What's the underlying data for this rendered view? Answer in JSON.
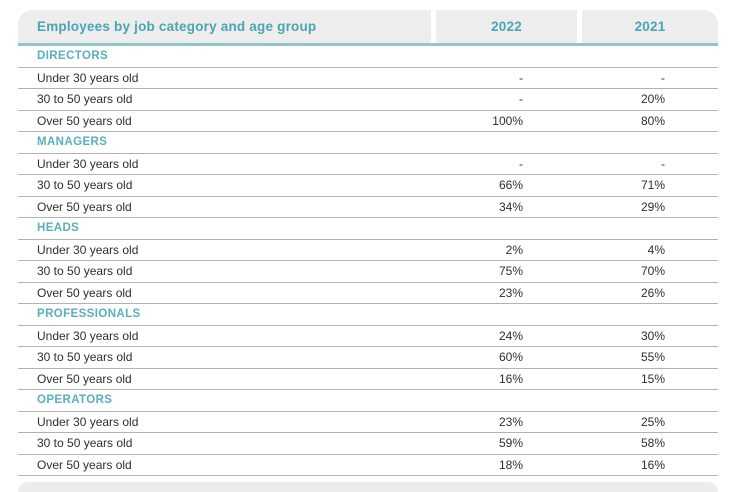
{
  "table": {
    "title": "Employees by job category and age group",
    "columns": [
      "2022",
      "2021"
    ],
    "sections": [
      {
        "name": "DIRECTORS",
        "rows": [
          {
            "label": "Under 30 years old",
            "y2022": "-",
            "y2021": "-"
          },
          {
            "label": "30 to 50 years old",
            "y2022": "-",
            "y2021": "20%"
          },
          {
            "label": "Over 50 years old",
            "y2022": "100%",
            "y2021": "80%"
          }
        ]
      },
      {
        "name": "MANAGERS",
        "rows": [
          {
            "label": "Under 30 years old",
            "y2022": "-",
            "y2021": "-"
          },
          {
            "label": "30 to 50 years old",
            "y2022": "66%",
            "y2021": "71%"
          },
          {
            "label": "Over 50 years old",
            "y2022": "34%",
            "y2021": "29%"
          }
        ]
      },
      {
        "name": "HEADS",
        "rows": [
          {
            "label": "Under 30 years old",
            "y2022": "2%",
            "y2021": "4%"
          },
          {
            "label": "30 to 50 years old",
            "y2022": "75%",
            "y2021": "70%"
          },
          {
            "label": "Over 50 years old",
            "y2022": "23%",
            "y2021": "26%"
          }
        ]
      },
      {
        "name": "PROFESSIONALS",
        "rows": [
          {
            "label": "Under 30 years old",
            "y2022": "24%",
            "y2021": "30%"
          },
          {
            "label": "30 to 50 years old",
            "y2022": "60%",
            "y2021": "55%"
          },
          {
            "label": "Over 50 years old",
            "y2022": "16%",
            "y2021": "15%"
          }
        ]
      },
      {
        "name": "OPERATORS",
        "rows": [
          {
            "label": "Under 30 years old",
            "y2022": "23%",
            "y2021": "25%"
          },
          {
            "label": "30 to 50 years old",
            "y2022": "59%",
            "y2021": "58%"
          },
          {
            "label": "Over 50 years old",
            "y2022": "18%",
            "y2021": "16%"
          }
        ]
      }
    ],
    "colors": {
      "accent_teal": "#4aa5b3",
      "section_teal": "#57b0bd",
      "rule_teal": "#93c5cc",
      "header_bg": "#ededed",
      "row_line": "#b2b2b2",
      "text": "#2e2e2e"
    }
  }
}
